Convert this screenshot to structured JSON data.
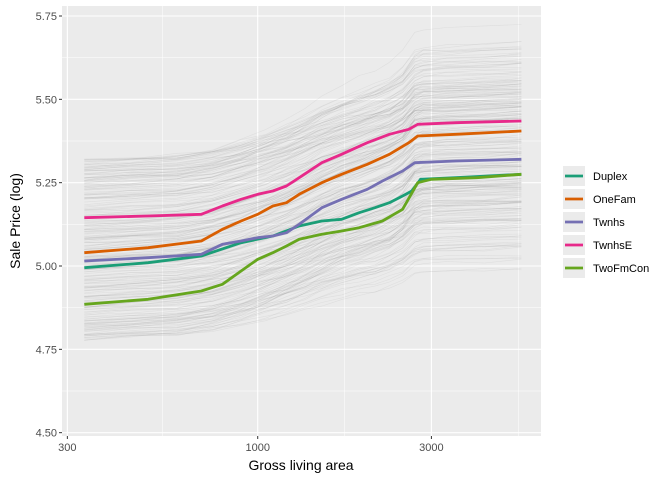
{
  "chart_data": {
    "type": "line",
    "title": "",
    "xlabel": "Gross living area",
    "ylabel": "Sale Price (log)",
    "x_scale": "log",
    "xlim": [
      290,
      6000
    ],
    "ylim": [
      4.49,
      5.78
    ],
    "x_ticks": [
      {
        "value": 300,
        "label": "300"
      },
      {
        "value": 1000,
        "label": "1000"
      },
      {
        "value": 3000,
        "label": "3000"
      }
    ],
    "y_ticks": [
      {
        "value": 4.5,
        "label": "4.50"
      },
      {
        "value": 4.75,
        "label": "4.75"
      },
      {
        "value": 5.0,
        "label": "5.00"
      },
      {
        "value": 5.25,
        "label": "5.25"
      },
      {
        "value": 5.5,
        "label": "5.50"
      },
      {
        "value": 5.75,
        "label": "5.75"
      }
    ],
    "grid": true,
    "legend_position": "right",
    "background_lines": "many thin grey individual conditional expectation curves",
    "series": [
      {
        "name": "Duplex",
        "color": "#1b9e77",
        "x": [
          334,
          500,
          700,
          900,
          1100,
          1300,
          1500,
          1700,
          1900,
          2100,
          2300,
          2500,
          2650,
          2800,
          3500,
          5300
        ],
        "y": [
          4.995,
          5.01,
          5.03,
          5.07,
          5.09,
          5.12,
          5.135,
          5.14,
          5.16,
          5.175,
          5.19,
          5.21,
          5.225,
          5.26,
          5.265,
          5.275
        ]
      },
      {
        "name": "OneFam",
        "color": "#d95f02",
        "x": [
          334,
          500,
          700,
          800,
          900,
          1000,
          1100,
          1200,
          1300,
          1500,
          1700,
          2000,
          2300,
          2600,
          2750,
          3500,
          5300
        ],
        "y": [
          5.04,
          5.055,
          5.075,
          5.11,
          5.135,
          5.155,
          5.18,
          5.19,
          5.215,
          5.25,
          5.275,
          5.305,
          5.335,
          5.37,
          5.39,
          5.395,
          5.405
        ]
      },
      {
        "name": "Twnhs",
        "color": "#7570b3",
        "x": [
          334,
          500,
          700,
          800,
          900,
          1000,
          1100,
          1200,
          1300,
          1500,
          1700,
          2000,
          2200,
          2500,
          2700,
          3500,
          5300
        ],
        "y": [
          5.015,
          5.025,
          5.035,
          5.065,
          5.075,
          5.085,
          5.09,
          5.1,
          5.125,
          5.175,
          5.2,
          5.23,
          5.255,
          5.285,
          5.31,
          5.315,
          5.32
        ]
      },
      {
        "name": "TwnhsE",
        "color": "#e7298a",
        "x": [
          334,
          500,
          700,
          800,
          900,
          1000,
          1100,
          1200,
          1300,
          1500,
          1700,
          2000,
          2300,
          2600,
          2750,
          3500,
          5300
        ],
        "y": [
          5.145,
          5.15,
          5.155,
          5.18,
          5.2,
          5.215,
          5.225,
          5.24,
          5.265,
          5.31,
          5.335,
          5.37,
          5.395,
          5.41,
          5.425,
          5.43,
          5.435
        ]
      },
      {
        "name": "TwoFmCon",
        "color": "#66a61e",
        "x": [
          334,
          500,
          700,
          800,
          900,
          1000,
          1100,
          1200,
          1300,
          1500,
          1700,
          1900,
          2200,
          2500,
          2750,
          3000,
          4000,
          5300
        ],
        "y": [
          4.885,
          4.9,
          4.925,
          4.945,
          4.985,
          5.02,
          5.04,
          5.06,
          5.08,
          5.095,
          5.105,
          5.115,
          5.135,
          5.17,
          5.25,
          5.26,
          5.265,
          5.275
        ]
      }
    ]
  }
}
